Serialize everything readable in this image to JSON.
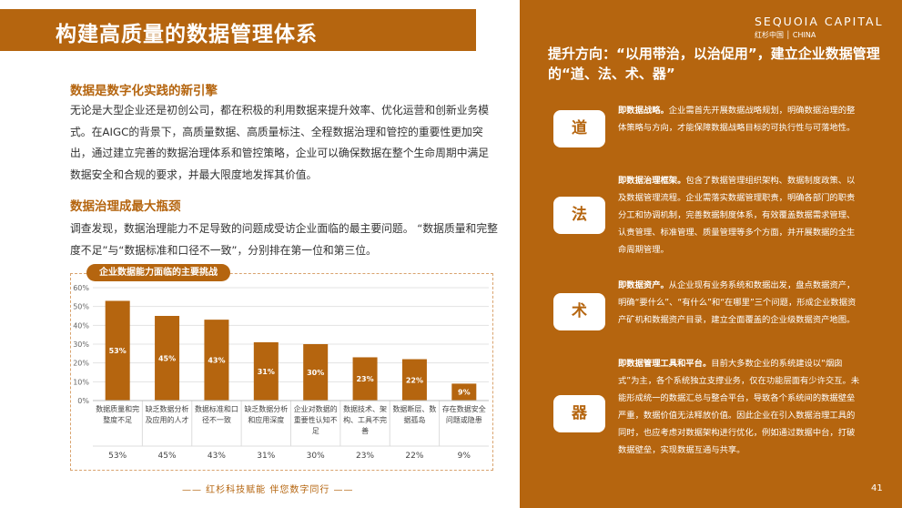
{
  "header": {
    "title": "构建高质量的数据管理体系"
  },
  "section1": {
    "heading": "数据是数字化实践的新引擎",
    "body": "无论是大型企业还是初创公司，都在积极的利用数据来提升效率、优化运营和创新业务模式。在AIGC的背景下，高质量数据、高质量标注、全程数据治理和管控的重要性更加突出，通过建立完善的数据治理体系和管控策略，企业可以确保数据在整个生命周期中满足数据安全和合规的要求，并最大限度地发挥其价值。"
  },
  "section2": {
    "heading": "数据治理成最大瓶颈",
    "body": "调查发现，数据治理能力不足导致的问题成受访企业面临的最主要问题。 “数据质量和完整度不足”与“数据标准和口径不一致”，分别排在第一位和第三位。"
  },
  "chart_data": {
    "type": "bar",
    "title": "企业数据能力面临的主要挑战",
    "categories": [
      "数据质量和完整度不足",
      "缺乏数据分析及应用的人才",
      "数据标准和口径不一致",
      "缺乏数据分析和应用深度",
      "企业对数据的重要性认知不足",
      "数据技术、架构、工具不完善",
      "数据断层、数据孤岛",
      "存在数据安全问题或隐患"
    ],
    "values": [
      53,
      45,
      43,
      31,
      30,
      23,
      22,
      9
    ],
    "value_labels": [
      "53%",
      "45%",
      "43%",
      "31%",
      "30%",
      "23%",
      "22%",
      "9%"
    ],
    "yticks": [
      "0%",
      "10%",
      "20%",
      "30%",
      "40%",
      "50%",
      "60%"
    ],
    "ylim": [
      0,
      60
    ],
    "grid": true,
    "color": "#b5650f"
  },
  "footer": {
    "slogan": "—— 红杉科技赋能   伴您数字同行 ——"
  },
  "brand": {
    "name": "SEQUOIA CAPITAL",
    "sub": "红杉中国 │ CHINA"
  },
  "right": {
    "title": "提升方向：“以用带治，以治促用”，建立企业数据管理的“道、法、术、器”",
    "items": [
      {
        "badge": "道",
        "lead": "即数据战略。",
        "text": "企业需首先开展数据战略规划，明确数据治理的整体策略与方向，才能保障数据战略目标的可执行性与可落地性。"
      },
      {
        "badge": "法",
        "lead": "即数据治理框架。",
        "text": "包含了数据管理组织架构、数据制度政策、以及数据管理流程。企业需落实数据管理职责，明确各部门的职责分工和协调机制，完善数据制度体系，有效覆盖数据需求管理、认责管理、标准管理、质量管理等多个方面，并开展数据的全生命周期管理。"
      },
      {
        "badge": "术",
        "lead": "即数据资产。",
        "text": "从企业现有业务系统和数据出发，盘点数据资产，明确“要什么”、“有什么”和“在哪里”三个问题，形成企业数据资产矿机和数据资产目录，建立全面覆盖的企业级数据资产地图。"
      },
      {
        "badge": "器",
        "lead": "即数据管理工具和平台。",
        "text": "目前大多数企业的系统建设以“烟囱式”为主，各个系统独立支撑业务，仅在功能层面有少许交互。未能形成统一的数据汇总与整合平台，导致各个系统间的数据壁垒严重，数据价值无法释放价值。因此企业在引入数据治理工具的同时，也应考虑对数据架构进行优化，例如通过数据中台，打破数据壁垒，实现数据互通与共享。"
      }
    ]
  },
  "page": {
    "number": "41"
  }
}
